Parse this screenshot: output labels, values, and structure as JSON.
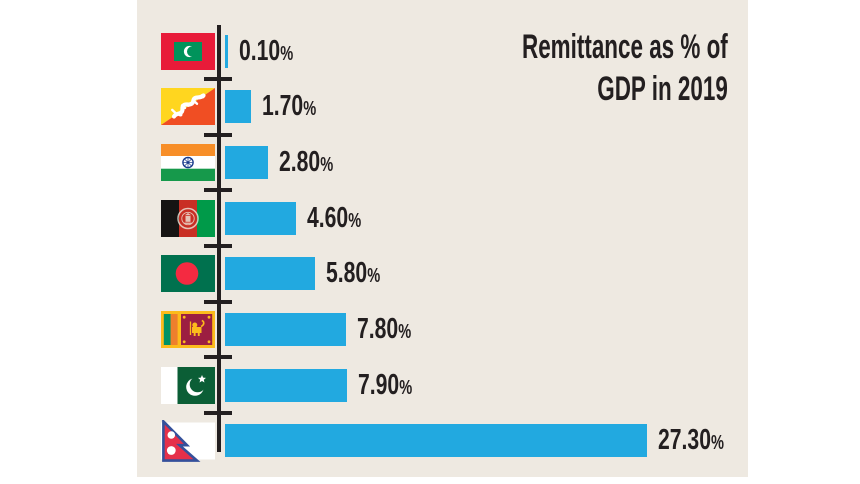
{
  "title": {
    "line1": "Remittance as % of",
    "line2": "GDP in 2019"
  },
  "colors": {
    "page_background": "#FFFFFF",
    "panel_background": "#EEE9E1",
    "bar": "#22A9E0",
    "axis": "#231F20",
    "text": "#231F20"
  },
  "chart_data": {
    "type": "bar",
    "orientation": "horizontal",
    "title": "Remittance as % of GDP in 2019",
    "categories": [
      "Maldives",
      "Bhutan",
      "India",
      "Afghanistan",
      "Bangladesh",
      "Sri Lanka",
      "Pakistan",
      "Nepal"
    ],
    "values": [
      0.1,
      1.7,
      2.8,
      4.6,
      5.8,
      7.8,
      7.9,
      27.3
    ],
    "labels": [
      "0.10",
      "1.70",
      "2.80",
      "4.60",
      "5.80",
      "7.80",
      "7.90",
      "27.30"
    ],
    "value_suffix": "%",
    "xlim": [
      0,
      28
    ],
    "grid": false,
    "legend": false
  },
  "flags": {
    "maldives": {
      "red": "#E81B39",
      "green": "#00935B",
      "crescent": "#FFFFFF"
    },
    "bhutan": {
      "yellow": "#FFD61F",
      "orange": "#F04E23",
      "dragon": "#FFFFFF"
    },
    "india": {
      "saffron": "#F78E28",
      "white": "#FFFFFF",
      "green": "#16994B",
      "navy": "#1A3C8C"
    },
    "afghanistan": {
      "black": "#161413",
      "red": "#C92F24",
      "green": "#009A49",
      "emblem": "#EFEDE0"
    },
    "bangladesh": {
      "green": "#00714E",
      "red": "#F42A41"
    },
    "srilanka": {
      "gold": "#FCBB1C",
      "maroon": "#9C1E41",
      "green": "#009265",
      "orange": "#EE7F2D"
    },
    "pakistan": {
      "green": "#0B5E36",
      "white": "#FFFFFF"
    },
    "nepal": {
      "crimson": "#E5304A",
      "blue": "#35509B",
      "white": "#FFFFFF"
    }
  }
}
